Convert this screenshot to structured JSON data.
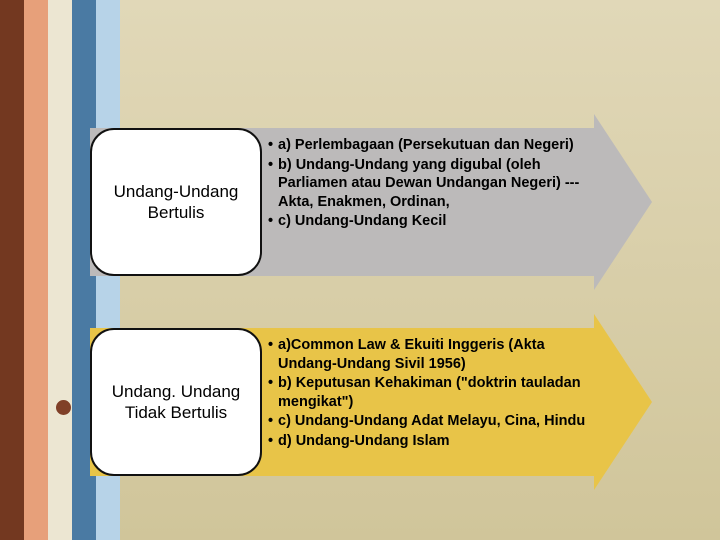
{
  "background": {
    "gradient_from": "#e1d8b8",
    "gradient_to": "#d0c59a"
  },
  "stripes": [
    "#733820",
    "#e7a07a",
    "#ece6d2",
    "#4a7aa3",
    "#b7d3e8"
  ],
  "accent_dot_color": "#804028",
  "blocks": [
    {
      "label": "Undang-Undang Bertulis",
      "arrow_body_color": "#bcbaba",
      "arrow_head_color": "#bcbaba",
      "bullets": [
        "a) Perlembagaan (Persekutuan dan Negeri)",
        "b) Undang-Undang yang digubal (oleh Parliamen atau Dewan Undangan Negeri)  ---Akta, Enakmen, Ordinan,",
        "c) Undang-Undang Kecil"
      ]
    },
    {
      "label": "Undang. Undang Tidak Bertulis",
      "arrow_body_color": "#e8c448",
      "arrow_head_color": "#e8c448",
      "bullets": [
        "a)Common Law & Ekuiti Inggeris (Akta Undang-Undang Sivil 1956)",
        "b) Keputusan Kehakiman  (\"doktrin tauladan mengikat\")",
        "c) Undang-Undang Adat Melayu, Cina, Hindu",
        "d) Undang-Undang Islam"
      ]
    }
  ]
}
